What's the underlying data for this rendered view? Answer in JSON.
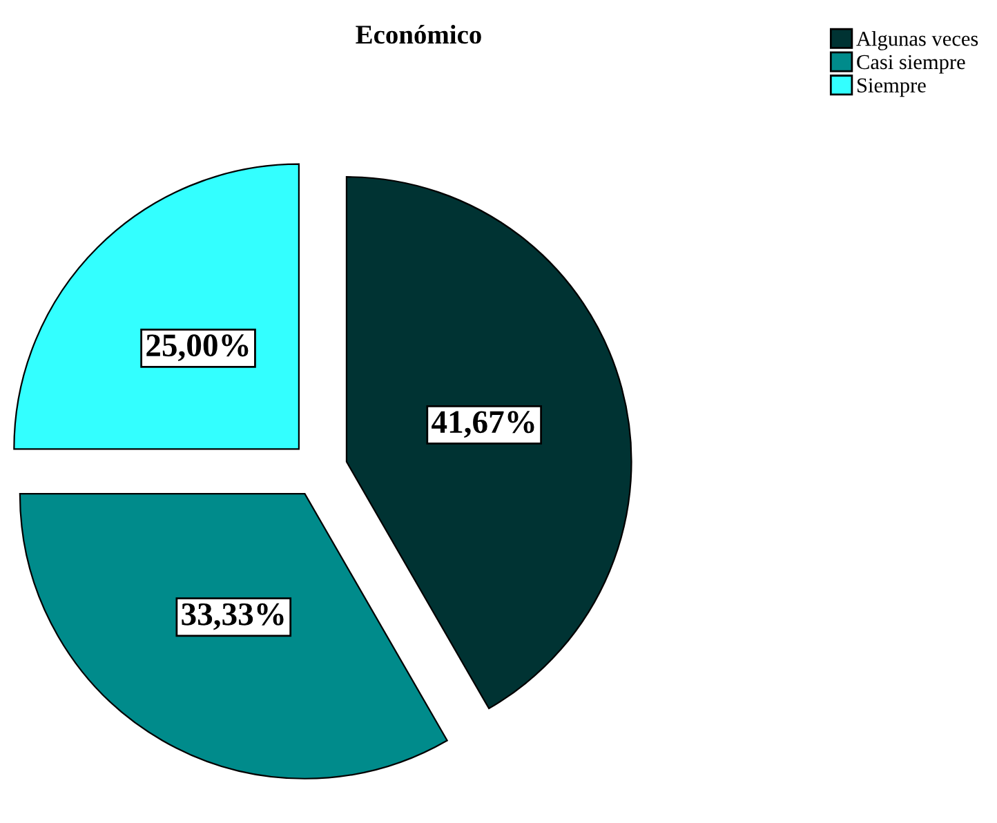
{
  "chart_data": {
    "type": "pie",
    "title": "Económico",
    "categories": [
      "Algunas veces",
      "Casi siempre",
      "Siempre"
    ],
    "values": [
      41.67,
      33.33,
      25.0
    ],
    "colors": [
      "#003333",
      "#008b8b",
      "#33ffff"
    ],
    "value_labels": [
      "41,67%",
      "33,33%",
      "25,00%"
    ],
    "legend": "top right"
  }
}
